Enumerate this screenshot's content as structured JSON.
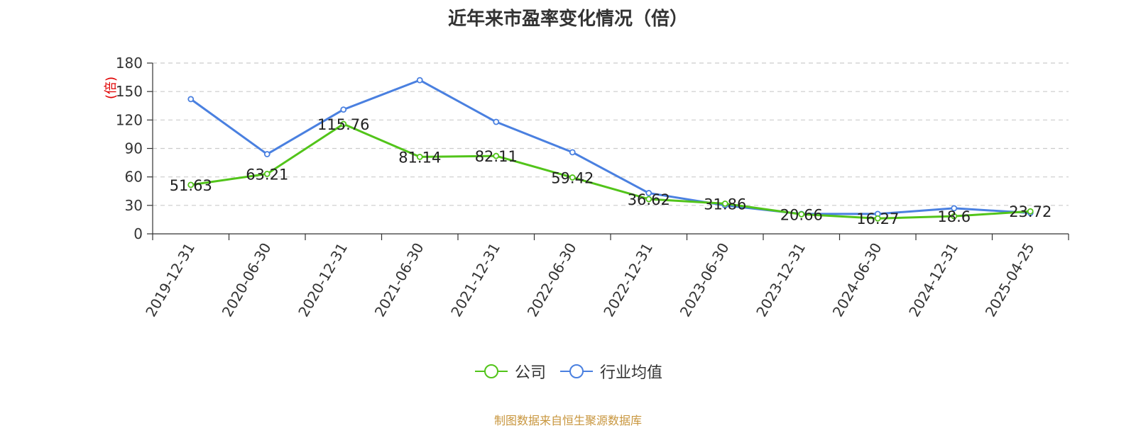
{
  "chart_data": {
    "type": "line",
    "title": "近年来市盈率变化情况（倍）",
    "ylabel": "(倍)",
    "ylim": [
      0,
      180
    ],
    "yticks": [
      0,
      30,
      60,
      90,
      120,
      150,
      180
    ],
    "grid": true,
    "legend_position": "bottom-center",
    "categories": [
      "2019-12-31",
      "2020-06-30",
      "2020-12-31",
      "2021-06-30",
      "2021-12-31",
      "2022-06-30",
      "2022-12-31",
      "2023-06-30",
      "2023-12-31",
      "2024-06-30",
      "2024-12-31",
      "2025-04-25"
    ],
    "series": [
      {
        "name": "公司",
        "color": "#52c41a",
        "values": [
          51.63,
          63.21,
          115.76,
          81.14,
          82.11,
          59.42,
          36.62,
          31.86,
          20.66,
          16.27,
          18.6,
          23.72
        ],
        "data_labels": [
          "51.63",
          "63.21",
          "115.76",
          "81.14",
          "82.11",
          "59.42",
          "36.62",
          "31.86",
          "20.66",
          "16.27",
          "18.6",
          "23.72"
        ]
      },
      {
        "name": "行业均值",
        "color": "#4a80e0",
        "values": [
          142,
          84,
          131,
          162,
          118,
          86,
          43,
          30,
          21,
          21,
          27,
          22
        ]
      }
    ]
  },
  "footer": {
    "source": "制图数据来自恒生聚源数据库"
  }
}
